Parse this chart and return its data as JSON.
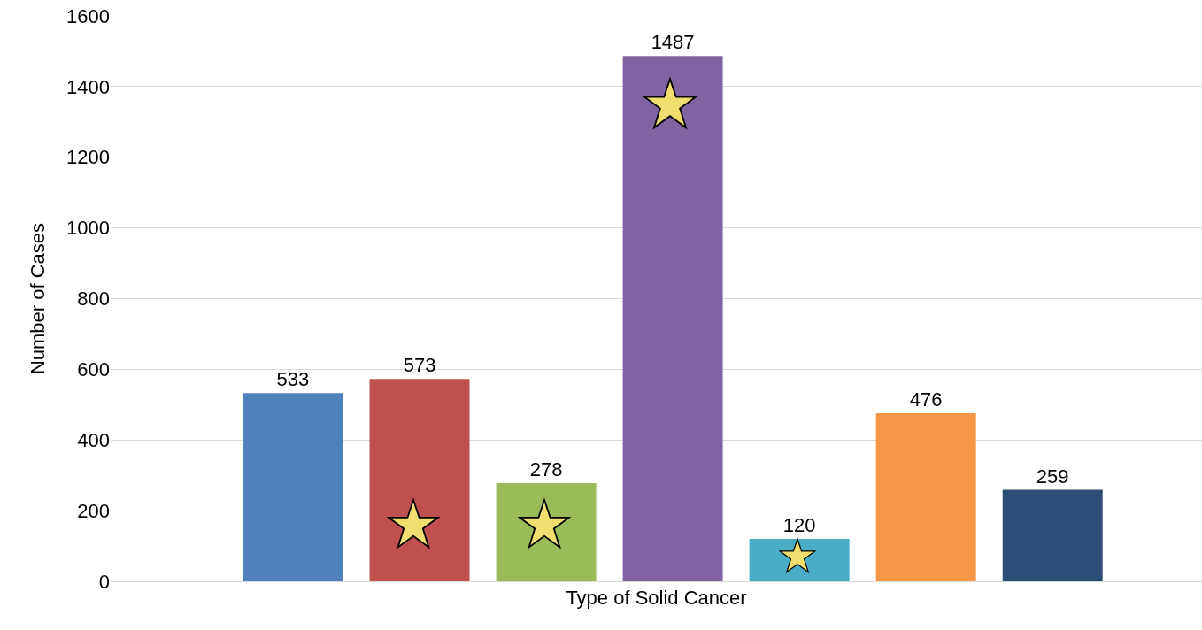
{
  "chart_data": {
    "type": "bar",
    "xlabel": "Type of Solid Cancer",
    "ylabel": "Number of Cases",
    "categories": [
      null,
      null,
      null,
      null,
      null,
      null,
      null
    ],
    "values": [
      533,
      573,
      278,
      1487,
      120,
      476,
      259
    ],
    "colors": [
      "#4f81bd",
      "#c0504d",
      "#9bbb59",
      "#8064a2",
      "#4bacc6",
      "#f79646",
      "#2c4d75"
    ],
    "ylim": [
      0,
      1600
    ],
    "yticks": [
      0,
      200,
      400,
      600,
      800,
      1000,
      1200,
      1400,
      1600
    ],
    "grid": "y",
    "data_labels": true,
    "legend": false,
    "tick_labels": "y"
  }
}
